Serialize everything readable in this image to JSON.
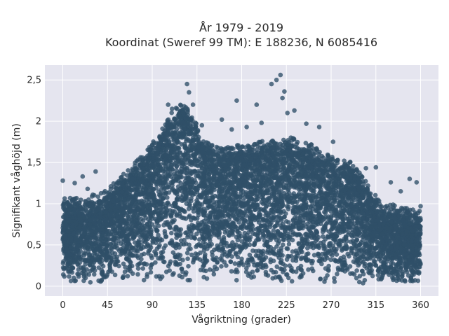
{
  "chart_data": {
    "type": "scatter",
    "title_line1": "År 1979 - 2019",
    "title_line2": "Koordinat (Sweref 99 TM): E 188236, N 6085416",
    "xlabel": "Vågriktning (grader)",
    "ylabel": "Signifikant våghöjd (m)",
    "xlim": [
      -18,
      378
    ],
    "ylim": [
      -0.12,
      2.68
    ],
    "x_ticks": [
      0,
      45,
      90,
      135,
      180,
      225,
      270,
      315,
      360
    ],
    "x_tick_labels": [
      "0",
      "45",
      "90",
      "135",
      "180",
      "225",
      "270",
      "315",
      "360"
    ],
    "y_ticks": [
      0,
      0.5,
      1,
      1.5,
      2,
      2.5
    ],
    "y_tick_labels": [
      "0",
      "0,5",
      "1",
      "1,5",
      "2",
      "2,5"
    ],
    "grid": true,
    "marker_color": "#2f5068",
    "plot_background": "#e5e5ef",
    "envelope": [
      {
        "x": 0,
        "y": 0.85
      },
      {
        "x": 20,
        "y": 0.85
      },
      {
        "x": 45,
        "y": 0.95
      },
      {
        "x": 65,
        "y": 1.2
      },
      {
        "x": 85,
        "y": 1.45
      },
      {
        "x": 100,
        "y": 1.7
      },
      {
        "x": 110,
        "y": 1.9
      },
      {
        "x": 120,
        "y": 2.0
      },
      {
        "x": 130,
        "y": 1.9
      },
      {
        "x": 140,
        "y": 1.55
      },
      {
        "x": 160,
        "y": 1.45
      },
      {
        "x": 180,
        "y": 1.5
      },
      {
        "x": 200,
        "y": 1.55
      },
      {
        "x": 225,
        "y": 1.6
      },
      {
        "x": 250,
        "y": 1.5
      },
      {
        "x": 270,
        "y": 1.35
      },
      {
        "x": 290,
        "y": 1.3
      },
      {
        "x": 305,
        "y": 1.05
      },
      {
        "x": 320,
        "y": 0.8
      },
      {
        "x": 340,
        "y": 0.75
      },
      {
        "x": 360,
        "y": 0.7
      }
    ],
    "outliers": [
      {
        "x": 0,
        "y": 1.28
      },
      {
        "x": 12,
        "y": 1.25
      },
      {
        "x": 20,
        "y": 1.33
      },
      {
        "x": 25,
        "y": 1.18
      },
      {
        "x": 33,
        "y": 1.39
      },
      {
        "x": 70,
        "y": 1.42
      },
      {
        "x": 80,
        "y": 1.56
      },
      {
        "x": 95,
        "y": 1.62
      },
      {
        "x": 106,
        "y": 2.2
      },
      {
        "x": 110,
        "y": 2.15
      },
      {
        "x": 125,
        "y": 2.45
      },
      {
        "x": 127,
        "y": 2.35
      },
      {
        "x": 131,
        "y": 2.2
      },
      {
        "x": 140,
        "y": 1.95
      },
      {
        "x": 160,
        "y": 2.02
      },
      {
        "x": 170,
        "y": 1.9
      },
      {
        "x": 175,
        "y": 2.25
      },
      {
        "x": 185,
        "y": 1.93
      },
      {
        "x": 195,
        "y": 2.2
      },
      {
        "x": 200,
        "y": 1.98
      },
      {
        "x": 210,
        "y": 2.45
      },
      {
        "x": 212,
        "y": 1.7
      },
      {
        "x": 215,
        "y": 2.5
      },
      {
        "x": 219,
        "y": 2.56
      },
      {
        "x": 221,
        "y": 2.28
      },
      {
        "x": 223,
        "y": 2.36
      },
      {
        "x": 226,
        "y": 2.1
      },
      {
        "x": 233,
        "y": 2.13
      },
      {
        "x": 245,
        "y": 1.97
      },
      {
        "x": 258,
        "y": 1.93
      },
      {
        "x": 272,
        "y": 1.75
      },
      {
        "x": 305,
        "y": 1.43
      },
      {
        "x": 315,
        "y": 1.44
      },
      {
        "x": 330,
        "y": 1.26
      },
      {
        "x": 340,
        "y": 1.15
      },
      {
        "x": 349,
        "y": 1.3
      },
      {
        "x": 356,
        "y": 1.26
      },
      {
        "x": 360,
        "y": 0.97
      }
    ]
  }
}
